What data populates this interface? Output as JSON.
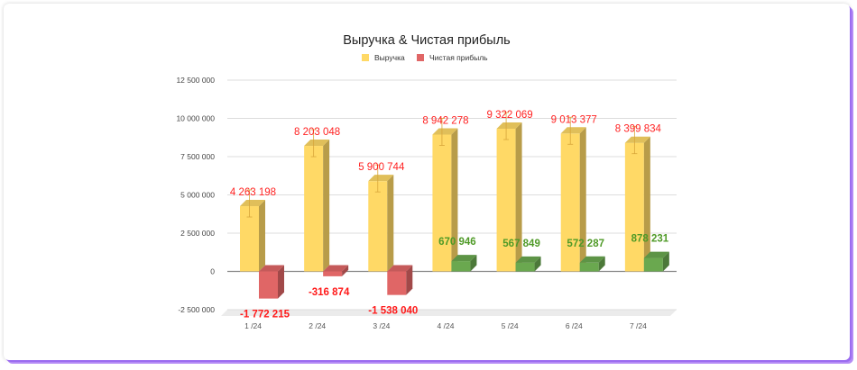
{
  "chart_data": {
    "type": "bar",
    "title": "Выручка & Чистая прибыль",
    "categories": [
      "1 /24",
      "2 /24",
      "3 /24",
      "4 /24",
      "5 /24",
      "6 /24",
      "7 /24"
    ],
    "series": [
      {
        "name": "Выручка",
        "color": "#ffd966",
        "values": [
          4263198,
          8203048,
          5900744,
          8942278,
          9322069,
          9013377,
          8399834
        ],
        "labels": [
          "4 263 198",
          "8 203 048",
          "5 900 744",
          "8 942 278",
          "9 322 069",
          "9 013 377",
          "8 399 834"
        ]
      },
      {
        "name": "Чистая прибыль",
        "color": "#e06666",
        "values": [
          -1772215,
          -316874,
          -1538040,
          670946,
          567849,
          572287,
          878231
        ],
        "labels": [
          "-1 772 215",
          "-316 874",
          "-1 538 040",
          "670 946",
          "567 849",
          "572 287",
          "878 231"
        ]
      }
    ],
    "positive_color": "#6aa84f",
    "ylim": [
      -2500000,
      12500000
    ],
    "yticks": [
      -2500000,
      0,
      2500000,
      5000000,
      7500000,
      10000000,
      12500000
    ],
    "ytick_labels": [
      "-2 500 000",
      "0",
      "2 500 000",
      "5 000 000",
      "7 500 000",
      "10 000 000",
      "12 500 000"
    ],
    "legend_position": "top-center",
    "grid": true,
    "style": "3d-column"
  }
}
